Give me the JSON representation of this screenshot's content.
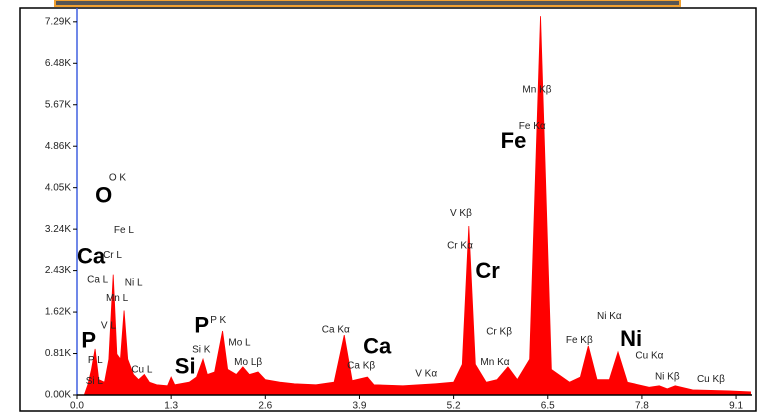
{
  "chart_data": {
    "type": "area",
    "color": "#ff0000",
    "x": [
      0.1,
      0.15,
      0.2,
      0.25,
      0.3,
      0.38,
      0.44,
      0.5,
      0.55,
      0.6,
      0.65,
      0.7,
      0.78,
      0.85,
      0.93,
      1.0,
      1.1,
      1.25,
      1.3,
      1.35,
      1.55,
      1.65,
      1.74,
      1.8,
      1.9,
      2.01,
      2.08,
      2.2,
      2.29,
      2.38,
      2.5,
      2.6,
      2.8,
      3.0,
      3.3,
      3.55,
      3.69,
      3.8,
      4.01,
      4.1,
      4.5,
      4.95,
      5.2,
      5.32,
      5.41,
      5.5,
      5.65,
      5.8,
      5.95,
      6.08,
      6.25,
      6.4,
      6.55,
      6.8,
      6.95,
      7.06,
      7.18,
      7.35,
      7.47,
      7.6,
      7.9,
      8.04,
      8.15,
      8.26,
      8.5,
      9.0,
      9.3
    ],
    "values": [
      0,
      200,
      500,
      900,
      300,
      250,
      700,
      2350,
      800,
      700,
      1650,
      700,
      400,
      300,
      400,
      250,
      200,
      180,
      350,
      200,
      250,
      350,
      700,
      400,
      450,
      1250,
      500,
      400,
      550,
      400,
      450,
      300,
      250,
      220,
      200,
      250,
      1170,
      280,
      350,
      200,
      180,
      220,
      250,
      600,
      3300,
      600,
      250,
      300,
      550,
      300,
      700,
      7400,
      500,
      250,
      350,
      960,
      300,
      300,
      840,
      250,
      150,
      180,
      120,
      180,
      100,
      80,
      60
    ],
    "xlim": [
      0,
      9.32
    ],
    "ylim": [
      0,
      7560
    ],
    "xticks": [
      {
        "value": 0,
        "label": "0.0"
      },
      1.3,
      2.6,
      3.9,
      5.2,
      6.5,
      7.8,
      9.1
    ],
    "yticks": [
      {
        "value": 0,
        "label": "0.00K"
      },
      {
        "value": 810,
        "label": "0.81K"
      },
      {
        "value": 1620,
        "label": "1.62K"
      },
      {
        "value": 2430,
        "label": "2.43K"
      },
      {
        "value": 3240,
        "label": "3.24K"
      },
      {
        "value": 4050,
        "label": "4.05K"
      },
      {
        "value": 4860,
        "label": "4.86K"
      },
      {
        "value": 5670,
        "label": "5.67K"
      },
      {
        "value": 6480,
        "label": "6.48K"
      },
      {
        "value": 7290,
        "label": "7.29K"
      }
    ],
    "element_labels": [
      {
        "text": "O",
        "x": 0.25,
        "y": 3870
      },
      {
        "text": "Ca",
        "x": 0.0,
        "y": 2680
      },
      {
        "text": "P",
        "x": 0.06,
        "y": 1040
      },
      {
        "text": "P",
        "x": 1.62,
        "y": 1330
      },
      {
        "text": "Si",
        "x": 1.35,
        "y": 530
      },
      {
        "text": "Fe",
        "x": 5.85,
        "y": 4940
      },
      {
        "text": "Cr",
        "x": 5.5,
        "y": 2400
      },
      {
        "text": "Ca",
        "x": 3.95,
        "y": 920
      },
      {
        "text": "Ni",
        "x": 7.5,
        "y": 1070
      }
    ],
    "line_labels": [
      {
        "text": "O K",
        "x": 0.44,
        "y": 4240
      },
      {
        "text": "Fe L",
        "x": 0.51,
        "y": 3220
      },
      {
        "text": "Cr L",
        "x": 0.36,
        "y": 2730
      },
      {
        "text": "Ca L",
        "x": 0.14,
        "y": 2250
      },
      {
        "text": "Ni L",
        "x": 0.66,
        "y": 2190
      },
      {
        "text": "Mn L",
        "x": 0.4,
        "y": 1890
      },
      {
        "text": "V L",
        "x": 0.33,
        "y": 1350
      },
      {
        "text": "P L",
        "x": 0.15,
        "y": 680
      },
      {
        "text": "Si L",
        "x": 0.12,
        "y": 270
      },
      {
        "text": "Cu L",
        "x": 0.75,
        "y": 490
      },
      {
        "text": "P K",
        "x": 1.84,
        "y": 1460
      },
      {
        "text": "Si K",
        "x": 1.59,
        "y": 880
      },
      {
        "text": "Mo L",
        "x": 2.09,
        "y": 1020
      },
      {
        "text": "Mo Lβ",
        "x": 2.17,
        "y": 640
      },
      {
        "text": "Ca Kα",
        "x": 3.38,
        "y": 1270
      },
      {
        "text": "Ca Kβ",
        "x": 3.73,
        "y": 570
      },
      {
        "text": "V Kα",
        "x": 4.67,
        "y": 410
      },
      {
        "text": "V Kβ",
        "x": 5.15,
        "y": 3550
      },
      {
        "text": "Cr Kα",
        "x": 5.11,
        "y": 2910
      },
      {
        "text": "Cr Kβ",
        "x": 5.65,
        "y": 1230
      },
      {
        "text": "Mn Kα",
        "x": 5.57,
        "y": 640
      },
      {
        "text": "Mn Kβ",
        "x": 6.15,
        "y": 5960
      },
      {
        "text": "Fe Kα",
        "x": 6.1,
        "y": 5250
      },
      {
        "text": "Fe Kβ",
        "x": 6.75,
        "y": 1070
      },
      {
        "text": "Ni Kα",
        "x": 7.18,
        "y": 1540
      },
      {
        "text": "Cu Kα",
        "x": 7.71,
        "y": 760
      },
      {
        "text": "Ni Kβ",
        "x": 7.98,
        "y": 350
      },
      {
        "text": "Cu Kβ",
        "x": 8.56,
        "y": 310
      }
    ]
  }
}
